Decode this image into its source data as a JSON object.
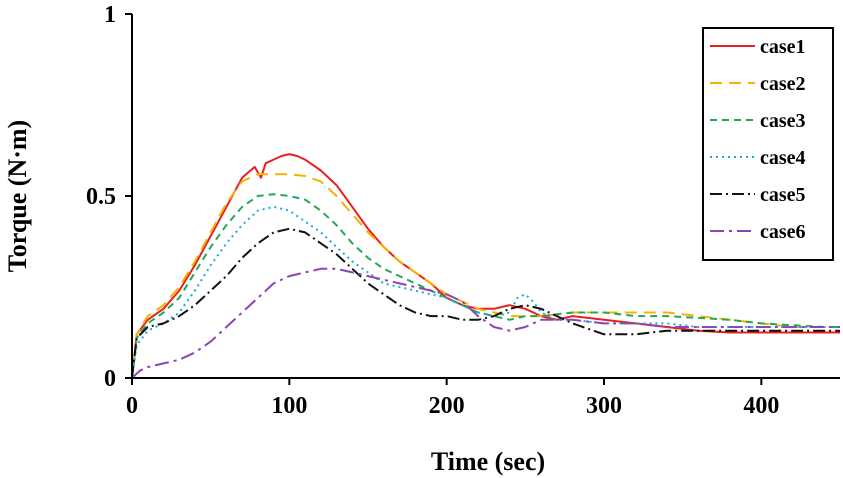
{
  "chart_data": {
    "type": "line",
    "xlabel": "Time (sec)",
    "ylabel": "Torque (N·m)",
    "xlim": [
      0,
      450
    ],
    "ylim": [
      0,
      1
    ],
    "xticks": [
      0,
      100,
      200,
      300,
      400
    ],
    "xtick_labels": [
      "0",
      "100",
      "200",
      "300",
      "400"
    ],
    "yticks": [
      0,
      0.5,
      1
    ],
    "ytick_labels": [
      "0",
      "0.5",
      "1"
    ],
    "grid": false,
    "legend_position": "top-right",
    "series": [
      {
        "name": "case1",
        "color": "#e8201e",
        "dash": "solid",
        "x": [
          0,
          3,
          10,
          20,
          30,
          40,
          50,
          60,
          70,
          78,
          82,
          85,
          90,
          95,
          100,
          105,
          110,
          120,
          130,
          140,
          150,
          160,
          170,
          180,
          190,
          200,
          210,
          220,
          230,
          240,
          250,
          260,
          270,
          280,
          300,
          320,
          340,
          360,
          380,
          400,
          420,
          440,
          450
        ],
        "y": [
          0.0,
          0.12,
          0.16,
          0.19,
          0.24,
          0.31,
          0.39,
          0.47,
          0.55,
          0.58,
          0.55,
          0.59,
          0.6,
          0.61,
          0.615,
          0.61,
          0.6,
          0.57,
          0.53,
          0.47,
          0.41,
          0.36,
          0.32,
          0.29,
          0.26,
          0.22,
          0.2,
          0.19,
          0.19,
          0.2,
          0.19,
          0.17,
          0.16,
          0.17,
          0.16,
          0.15,
          0.14,
          0.13,
          0.125,
          0.125,
          0.125,
          0.125,
          0.125
        ]
      },
      {
        "name": "case2",
        "color": "#f2b400",
        "dash": "12,7",
        "x": [
          0,
          3,
          10,
          20,
          30,
          40,
          50,
          60,
          70,
          80,
          90,
          100,
          110,
          120,
          130,
          140,
          150,
          160,
          170,
          180,
          190,
          200,
          210,
          220,
          230,
          240,
          250,
          260,
          280,
          300,
          320,
          340,
          360,
          380,
          400,
          420,
          440,
          450
        ],
        "y": [
          0.0,
          0.12,
          0.17,
          0.2,
          0.25,
          0.32,
          0.4,
          0.48,
          0.54,
          0.56,
          0.56,
          0.56,
          0.555,
          0.54,
          0.5,
          0.45,
          0.4,
          0.36,
          0.32,
          0.29,
          0.26,
          0.23,
          0.21,
          0.19,
          0.18,
          0.17,
          0.17,
          0.17,
          0.18,
          0.18,
          0.18,
          0.18,
          0.17,
          0.16,
          0.15,
          0.14,
          0.14,
          0.14
        ]
      },
      {
        "name": "case3",
        "color": "#22a858",
        "dash": "7,5",
        "x": [
          0,
          3,
          10,
          20,
          30,
          40,
          50,
          60,
          70,
          80,
          90,
          100,
          110,
          120,
          130,
          140,
          150,
          160,
          170,
          180,
          190,
          200,
          210,
          220,
          230,
          240,
          250,
          260,
          280,
          300,
          320,
          340,
          360,
          380,
          400,
          420,
          440,
          450
        ],
        "y": [
          0.0,
          0.11,
          0.15,
          0.18,
          0.22,
          0.29,
          0.36,
          0.42,
          0.47,
          0.5,
          0.505,
          0.5,
          0.49,
          0.46,
          0.42,
          0.37,
          0.33,
          0.3,
          0.28,
          0.26,
          0.24,
          0.22,
          0.2,
          0.18,
          0.17,
          0.16,
          0.17,
          0.17,
          0.18,
          0.18,
          0.17,
          0.17,
          0.165,
          0.16,
          0.15,
          0.145,
          0.14,
          0.14
        ]
      },
      {
        "name": "case4",
        "color": "#1aa9d6",
        "dash": "2,4",
        "x": [
          0,
          3,
          10,
          20,
          30,
          40,
          50,
          60,
          70,
          80,
          90,
          100,
          110,
          120,
          130,
          140,
          150,
          160,
          170,
          180,
          190,
          200,
          210,
          220,
          230,
          240,
          245,
          250,
          255,
          260,
          270,
          280,
          300,
          320,
          340,
          360,
          380,
          400,
          420,
          440,
          450
        ],
        "y": [
          0.0,
          0.09,
          0.13,
          0.15,
          0.18,
          0.24,
          0.31,
          0.37,
          0.42,
          0.46,
          0.47,
          0.46,
          0.43,
          0.4,
          0.36,
          0.32,
          0.29,
          0.26,
          0.25,
          0.24,
          0.23,
          0.22,
          0.2,
          0.18,
          0.17,
          0.18,
          0.22,
          0.23,
          0.21,
          0.18,
          0.16,
          0.16,
          0.15,
          0.15,
          0.15,
          0.14,
          0.14,
          0.14,
          0.14,
          0.14,
          0.14
        ]
      },
      {
        "name": "case5",
        "color": "#111111",
        "dash": "12,4,2,4",
        "x": [
          0,
          3,
          10,
          20,
          30,
          40,
          50,
          60,
          70,
          80,
          90,
          100,
          110,
          120,
          130,
          140,
          150,
          160,
          170,
          180,
          190,
          200,
          210,
          220,
          230,
          240,
          250,
          260,
          280,
          300,
          320,
          340,
          360,
          380,
          400,
          420,
          440,
          450
        ],
        "y": [
          0.0,
          0.11,
          0.14,
          0.15,
          0.17,
          0.2,
          0.24,
          0.28,
          0.33,
          0.37,
          0.4,
          0.41,
          0.4,
          0.37,
          0.34,
          0.3,
          0.26,
          0.23,
          0.2,
          0.18,
          0.17,
          0.17,
          0.16,
          0.16,
          0.17,
          0.19,
          0.2,
          0.19,
          0.15,
          0.12,
          0.12,
          0.13,
          0.13,
          0.13,
          0.13,
          0.13,
          0.13,
          0.13
        ]
      },
      {
        "name": "case6",
        "color": "#8e44b8",
        "dash": "14,5,3,5",
        "x": [
          0,
          5,
          10,
          20,
          30,
          40,
          50,
          60,
          70,
          80,
          90,
          100,
          110,
          120,
          130,
          140,
          150,
          160,
          170,
          180,
          190,
          200,
          210,
          220,
          230,
          240,
          250,
          260,
          280,
          300,
          320,
          340,
          360,
          380,
          400,
          420,
          440,
          450
        ],
        "y": [
          0.0,
          0.02,
          0.03,
          0.04,
          0.05,
          0.07,
          0.1,
          0.14,
          0.18,
          0.22,
          0.26,
          0.28,
          0.29,
          0.3,
          0.3,
          0.29,
          0.28,
          0.27,
          0.26,
          0.25,
          0.24,
          0.23,
          0.21,
          0.17,
          0.14,
          0.13,
          0.14,
          0.16,
          0.16,
          0.15,
          0.15,
          0.14,
          0.14,
          0.14,
          0.14,
          0.14,
          0.14,
          0.14
        ]
      }
    ]
  }
}
